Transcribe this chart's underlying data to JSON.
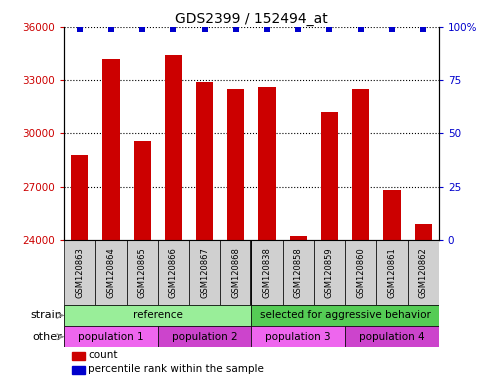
{
  "title": "GDS2399 / 152494_at",
  "samples": [
    "GSM120863",
    "GSM120864",
    "GSM120865",
    "GSM120866",
    "GSM120867",
    "GSM120868",
    "GSM120838",
    "GSM120858",
    "GSM120859",
    "GSM120860",
    "GSM120861",
    "GSM120862"
  ],
  "counts": [
    28800,
    34200,
    29600,
    34400,
    32900,
    32500,
    32600,
    24200,
    31200,
    32500,
    26800,
    24900
  ],
  "ylim_left": [
    24000,
    36000
  ],
  "ylim_right": [
    0,
    100
  ],
  "yticks_left": [
    24000,
    27000,
    30000,
    33000,
    36000
  ],
  "yticks_right": [
    0,
    25,
    50,
    75,
    100
  ],
  "bar_color": "#cc0000",
  "dot_color": "#0000cc",
  "left_tick_color": "#cc0000",
  "right_tick_color": "#0000cc",
  "label_box_color": "#d0d0d0",
  "strain_groups": [
    {
      "label": "reference",
      "start": 0,
      "end": 6,
      "color": "#99ee99"
    },
    {
      "label": "selected for aggressive behavior",
      "start": 6,
      "end": 12,
      "color": "#55cc55"
    }
  ],
  "other_groups": [
    {
      "label": "population 1",
      "start": 0,
      "end": 3,
      "color": "#ee66ee"
    },
    {
      "label": "population 2",
      "start": 3,
      "end": 6,
      "color": "#cc44cc"
    },
    {
      "label": "population 3",
      "start": 6,
      "end": 9,
      "color": "#ee66ee"
    },
    {
      "label": "population 4",
      "start": 9,
      "end": 12,
      "color": "#cc44cc"
    }
  ],
  "strain_label": "strain",
  "other_label": "other",
  "legend_count_label": "count",
  "legend_pct_label": "percentile rank within the sample",
  "n_samples": 12,
  "group_split": 6
}
